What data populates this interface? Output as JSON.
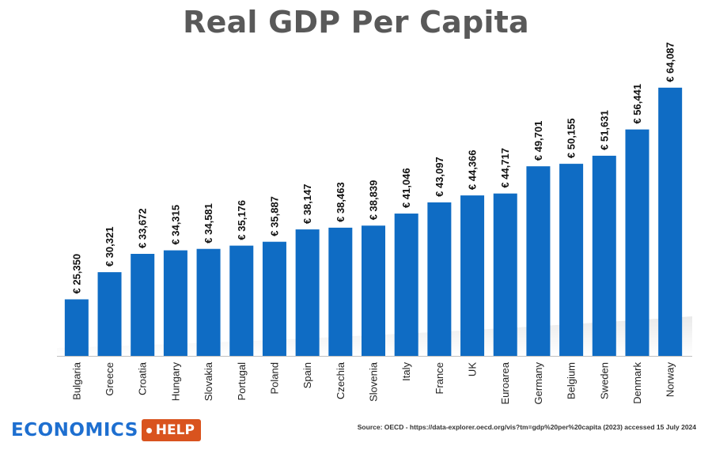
{
  "chart_data": {
    "type": "bar",
    "title": "Real GDP Per Capita",
    "categories": [
      "Bulgaria",
      "Greece",
      "Croatia",
      "Hungary",
      "Slovakia",
      "Portugal",
      "Poland",
      "Spain",
      "Czechia",
      "Slovenia",
      "Italy",
      "France",
      "UK",
      "Euroarea",
      "Germany",
      "Belgium",
      "Sweden",
      "Denmark",
      "Norway"
    ],
    "values": [
      25350,
      30321,
      33672,
      34315,
      34581,
      35176,
      35887,
      38147,
      38463,
      38839,
      41046,
      43097,
      44366,
      44717,
      49701,
      50155,
      51631,
      56441,
      64087
    ],
    "value_labels": [
      "€ 25,350",
      "€ 30,321",
      "€ 33,672",
      "€ 34,315",
      "€ 34,581",
      "€ 35,176",
      "€ 35,887",
      "€ 38,147",
      "€ 38,463",
      "€ 38,839",
      "€ 41,046",
      "€ 43,097",
      "€ 44,366",
      "€ 44,717",
      "€ 49,701",
      "€ 50,155",
      "€ 51,631",
      "€ 56,441",
      "€ 64,087"
    ],
    "xlabel": "",
    "ylabel": "",
    "ylim": [
      15000,
      70000
    ],
    "bar_color": "#0f6cc4",
    "grid": false,
    "legend": "none"
  },
  "source": "Source: OECD - https://data-explorer.oecd.org/vis?tm=gdp%20per%20capita (2023) accessed 15 July 2024",
  "logo": {
    "word": "ECONOMICS",
    "tag": "HELP",
    "word_color": "#1e6fd0",
    "tag_color": "#d9531e"
  }
}
